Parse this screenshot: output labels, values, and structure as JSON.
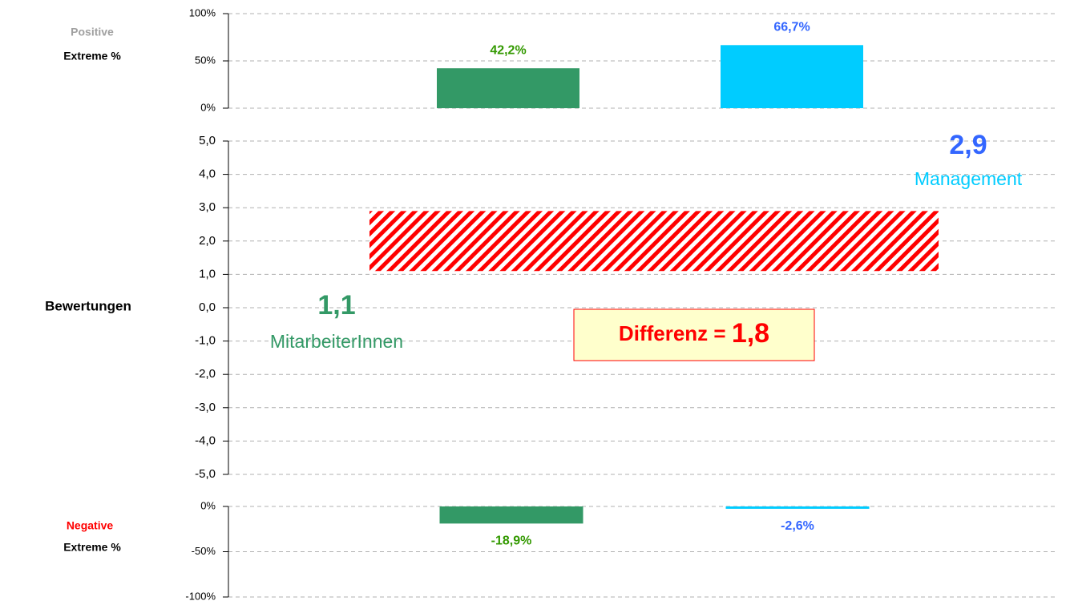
{
  "chart_data": [
    {
      "type": "bar",
      "title": "Positive",
      "subtitle": "Extreme %",
      "categories": [
        null,
        null
      ],
      "values": [
        42.2,
        66.7
      ],
      "value_labels": [
        "42,2%",
        "66,7%"
      ],
      "colors": [
        "#339966",
        "#00ccff"
      ],
      "label_colors": [
        "#339900",
        "#3366ff"
      ],
      "ylim": [
        0,
        100
      ],
      "yticks": [
        {
          "value": 0,
          "label": "0%"
        },
        {
          "value": 50,
          "label": "50%"
        },
        {
          "value": 100,
          "label": "100%"
        }
      ],
      "grid": true
    },
    {
      "type": "range",
      "ylabel": "Bewertungen",
      "categories": [
        "MitarbeiterInnen",
        "Management"
      ],
      "values": [
        1.1,
        2.9
      ],
      "value_labels": [
        "1,1",
        "2,9"
      ],
      "colors": [
        "#339966",
        "#00ccff"
      ],
      "label_colors": [
        "#339966",
        "#3366ff"
      ],
      "band_color": "#ff0000",
      "difference": {
        "label": "Differenz =",
        "value": 1.8,
        "value_label": "1,8"
      },
      "ylim": [
        -5,
        5
      ],
      "yticks": [
        {
          "value": -5,
          "label": "-5,0"
        },
        {
          "value": -4,
          "label": "-4,0"
        },
        {
          "value": -3,
          "label": "-3,0"
        },
        {
          "value": -2,
          "label": "-2,0"
        },
        {
          "value": -1,
          "label": "-1,0"
        },
        {
          "value": 0,
          "label": "0,0"
        },
        {
          "value": 1,
          "label": "1,0"
        },
        {
          "value": 2,
          "label": "2,0"
        },
        {
          "value": 3,
          "label": "3,0"
        },
        {
          "value": 4,
          "label": "4,0"
        },
        {
          "value": 5,
          "label": "5,0"
        }
      ],
      "grid": true
    },
    {
      "type": "bar",
      "title": "Negative",
      "subtitle": "Extreme %",
      "categories": [
        null,
        null
      ],
      "values": [
        -18.9,
        -2.6
      ],
      "value_labels": [
        "-18,9%",
        "-2,6%"
      ],
      "colors": [
        "#339966",
        "#00ccff"
      ],
      "label_colors": [
        "#339900",
        "#3366ff"
      ],
      "ylim": [
        -100,
        0
      ],
      "yticks": [
        {
          "value": -100,
          "label": "-100%"
        },
        {
          "value": -50,
          "label": "-50%"
        },
        {
          "value": 0,
          "label": "0%"
        }
      ],
      "grid": true
    }
  ]
}
